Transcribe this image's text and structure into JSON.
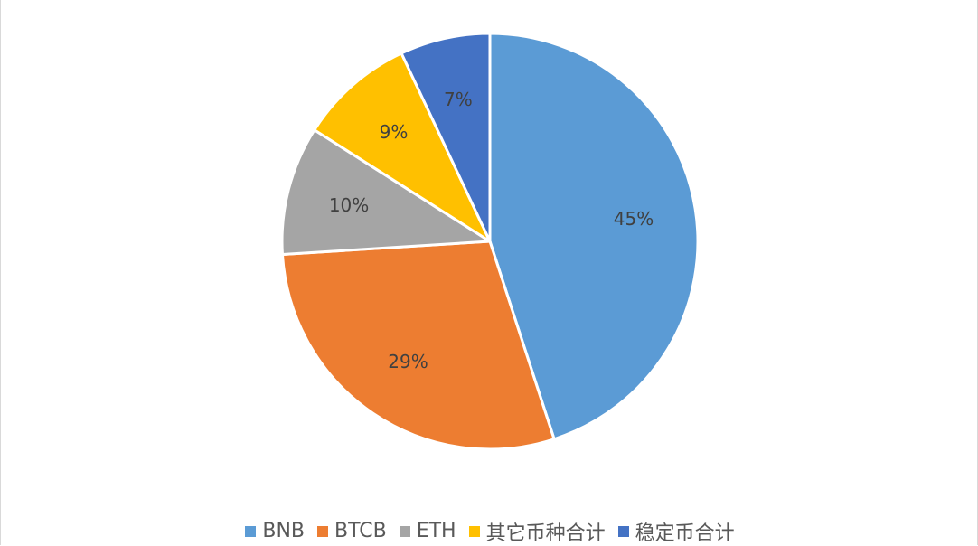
{
  "chart_data": {
    "type": "pie",
    "title": "",
    "legend_position": "bottom",
    "slices": [
      {
        "name": "BNB",
        "value": 45,
        "label": "45%",
        "color": "#5b9bd5"
      },
      {
        "name": "BTCB",
        "value": 29,
        "label": "29%",
        "color": "#ed7d31"
      },
      {
        "name": "ETH",
        "value": 10,
        "label": "10%",
        "color": "#a5a5a5"
      },
      {
        "name": "其它币种合计",
        "value": 9,
        "label": "9%",
        "color": "#ffc000"
      },
      {
        "name": "稳定币合计",
        "value": 7,
        "label": "7%",
        "color": "#4472c4"
      }
    ]
  }
}
